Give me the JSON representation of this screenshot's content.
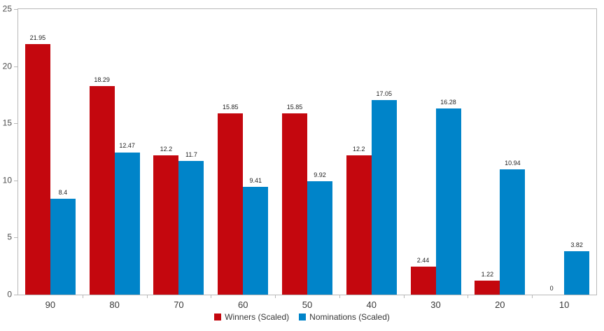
{
  "chart_data": {
    "type": "bar",
    "title": "",
    "xlabel": "",
    "ylabel": "",
    "categories": [
      "90",
      "80",
      "70",
      "60",
      "50",
      "40",
      "30",
      "20",
      "10"
    ],
    "series": [
      {
        "name": "Winners (Scaled)",
        "color": "#c4070e",
        "values": [
          21.95,
          18.29,
          12.2,
          15.85,
          15.85,
          12.2,
          2.44,
          1.22,
          0
        ]
      },
      {
        "name": "Nominations (Scaled)",
        "color": "#0084c9",
        "values": [
          8.4,
          12.47,
          11.7,
          9.41,
          9.92,
          17.05,
          16.28,
          10.94,
          3.82
        ]
      }
    ],
    "ylim": [
      0,
      25
    ],
    "yticks": [
      0,
      5,
      10,
      15,
      20,
      25
    ],
    "grid": false,
    "value_labels_shown": true,
    "legend_position": "bottom"
  },
  "colors": {
    "background": "#ffffff",
    "axis": "#b9b9b9",
    "tick_label": "#4d4d4d",
    "category_label": "#383838",
    "value_label": "#1f1f1f"
  }
}
